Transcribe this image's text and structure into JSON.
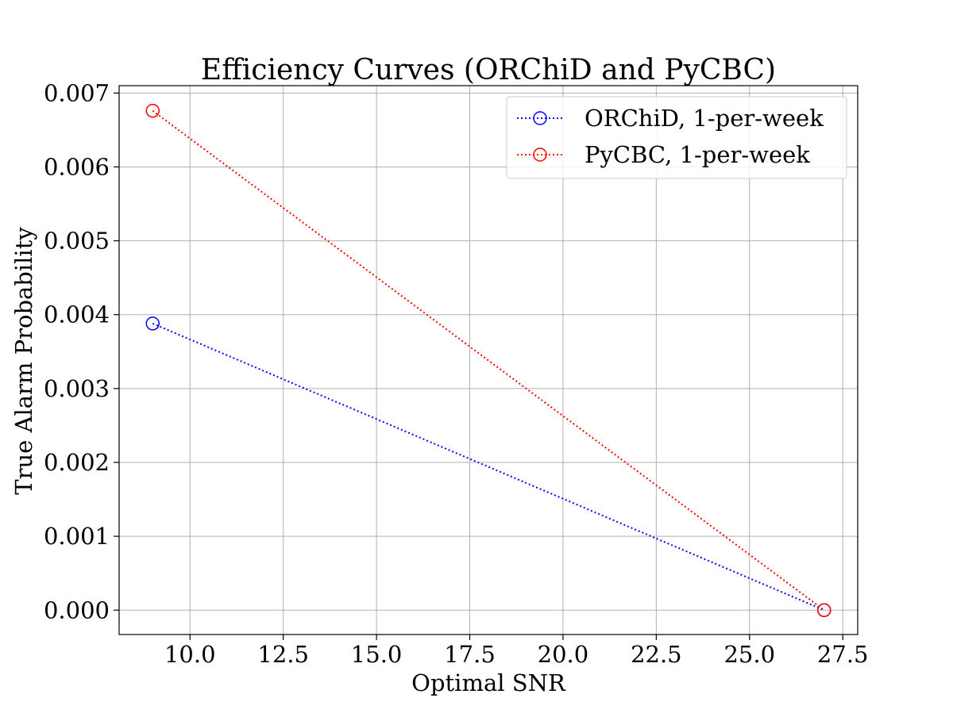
{
  "chart_data": {
    "type": "line",
    "title": "Efficiency Curves (ORChiD and PyCBC)",
    "xlabel": "Optimal SNR",
    "ylabel": "True Alarm Probability",
    "xlim": [
      8.1,
      27.9
    ],
    "ylim": [
      -0.00033,
      0.0071
    ],
    "x_ticks": [
      10.0,
      12.5,
      15.0,
      17.5,
      20.0,
      22.5,
      25.0,
      27.5
    ],
    "x_tick_labels": [
      "10.0",
      "12.5",
      "15.0",
      "17.5",
      "20.0",
      "22.5",
      "25.0",
      "27.5"
    ],
    "y_ticks": [
      0.0,
      0.001,
      0.002,
      0.003,
      0.004,
      0.005,
      0.006,
      0.007
    ],
    "y_tick_labels": [
      "0.000",
      "0.001",
      "0.002",
      "0.003",
      "0.004",
      "0.005",
      "0.006",
      "0.007"
    ],
    "grid": true,
    "legend_position": "top-right",
    "series": [
      {
        "name": "ORChiD, 1-per-week",
        "color": "#0000ff",
        "line_style": "dotted",
        "marker": "open-circle",
        "x": [
          9.0,
          27.0
        ],
        "y": [
          0.00388,
          0.0
        ]
      },
      {
        "name": "PyCBC, 1-per-week",
        "color": "#ff0000",
        "line_style": "dotted",
        "marker": "open-circle",
        "x": [
          9.0,
          27.0
        ],
        "y": [
          0.00676,
          0.0
        ]
      }
    ]
  }
}
